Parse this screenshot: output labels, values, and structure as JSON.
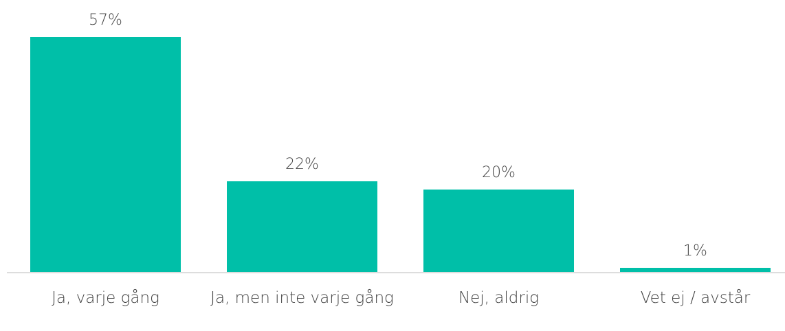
{
  "chart_data": {
    "type": "bar",
    "categories": [
      "Ja, varje gång",
      "Ja, men inte varje gång",
      "Nej, aldrig",
      "Vet ej / avstår"
    ],
    "values": [
      57,
      22,
      20,
      1
    ],
    "value_labels": [
      "57%",
      "22%",
      "20%",
      "1%"
    ],
    "color": "#00bfa8"
  }
}
